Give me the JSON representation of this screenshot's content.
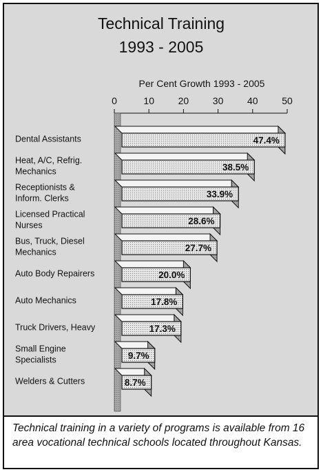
{
  "chart_data": {
    "type": "bar",
    "orientation": "horizontal",
    "style": "3d",
    "title": "Technical Training",
    "subtitle": "1993 - 2005",
    "xlabel": "Per Cent Growth 1993 - 2005",
    "xlim": [
      0,
      50
    ],
    "xticks": [
      "0",
      "10",
      "20",
      "30",
      "40",
      "50"
    ],
    "xtick_values": [
      0,
      10,
      20,
      30,
      40,
      50
    ],
    "axis_position": "top",
    "grid": false,
    "legend": "none",
    "categories": [
      [
        "Dental Assistants"
      ],
      [
        "Heat, A/C, Refrig.",
        "Mechanics"
      ],
      [
        "Receptionists &",
        "Inform. Clerks"
      ],
      [
        "Licensed Practical",
        "Nurses"
      ],
      [
        "Bus, Truck, Diesel",
        "Mechanics"
      ],
      [
        "Auto Body Repairers"
      ],
      [
        "Auto Mechanics"
      ],
      [
        "Truck Drivers, Heavy"
      ],
      [
        "Small Engine",
        "Specialists"
      ],
      [
        "Welders & Cutters"
      ]
    ],
    "values": [
      47.4,
      38.5,
      33.9,
      28.6,
      27.7,
      20.0,
      17.8,
      17.3,
      9.7,
      8.7
    ],
    "data_labels": [
      "47.4%",
      "38.5%",
      "33.9%",
      "28.6%",
      "27.7%",
      "20.0%",
      "17.8%",
      "17.3%",
      "9.7%",
      "8.7%"
    ],
    "colors": {
      "panel": "#d9d9d9",
      "bar_front": "#e9e9e9",
      "bar_dots": "#8c8c8c",
      "bar_top": "#f4f4f4",
      "bar_side": "#a9a9a9",
      "outline": "#111111"
    }
  },
  "caption": "Technical training in a variety of programs is available from 16 area vocational technical schools located throughout Kansas."
}
